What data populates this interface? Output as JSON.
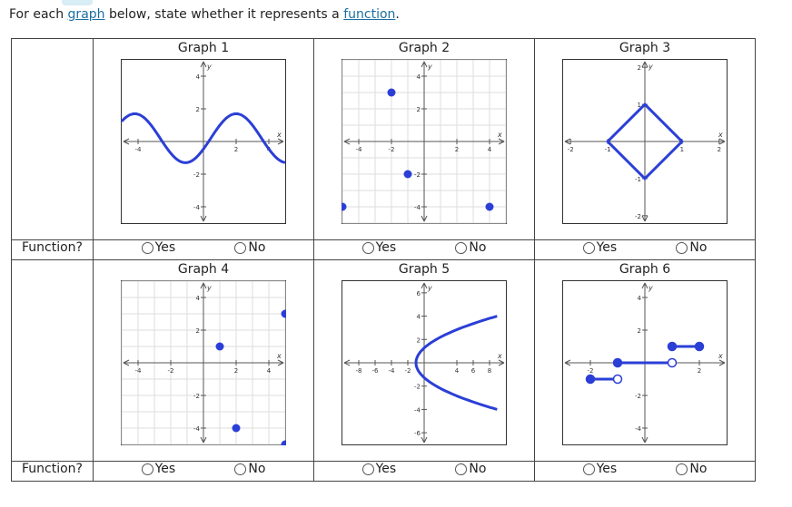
{
  "prompt": {
    "before": "For each ",
    "link1": "graph",
    "middle": " below, state whether it represents a ",
    "link2": "function",
    "after": "."
  },
  "question_label": "Function?",
  "yes_label": "Yes",
  "no_label": "No",
  "graphs": [
    {
      "title": "Graph 1"
    },
    {
      "title": "Graph 2"
    },
    {
      "title": "Graph 3"
    },
    {
      "title": "Graph 4"
    },
    {
      "title": "Graph 5"
    },
    {
      "title": "Graph 6"
    }
  ],
  "axis": {
    "x_label": "x",
    "y_label": "y"
  },
  "chart_data": [
    {
      "type": "line",
      "title": "Graph 1",
      "xlim": [
        -5,
        5
      ],
      "ylim": [
        -5,
        5
      ],
      "xticks": [
        "-4",
        "2",
        "4"
      ],
      "yticks": [
        "4",
        "2",
        "-2",
        "-4"
      ],
      "description": "sine-like wave",
      "grid": false
    },
    {
      "type": "scatter",
      "title": "Graph 2",
      "xlim": [
        -5,
        5
      ],
      "ylim": [
        -5,
        5
      ],
      "xticks": [
        "-4",
        "-2",
        "2",
        "4"
      ],
      "yticks": [
        "4",
        "2",
        "-2",
        "-4"
      ],
      "points": [
        [
          -2,
          3
        ],
        [
          -5,
          -4
        ],
        [
          -1,
          -2
        ],
        [
          4,
          -4
        ]
      ],
      "grid": true
    },
    {
      "type": "line",
      "title": "Graph 3",
      "xlim": [
        -2.2,
        2.2
      ],
      "ylim": [
        -2.2,
        2.2
      ],
      "xticks": [
        "-2",
        "-1",
        "1",
        "2"
      ],
      "yticks": [
        "2",
        "1",
        "-1",
        "-2"
      ],
      "vertices": [
        [
          0,
          1
        ],
        [
          1,
          0
        ],
        [
          0,
          -1
        ],
        [
          -1,
          0
        ]
      ],
      "grid": false
    },
    {
      "type": "scatter",
      "title": "Graph 4",
      "xlim": [
        -5,
        5
      ],
      "ylim": [
        -5,
        5
      ],
      "xticks": [
        "-4",
        "-2",
        "2",
        "4"
      ],
      "yticks": [
        "4",
        "2",
        "-2",
        "-4"
      ],
      "points": [
        [
          5,
          3
        ],
        [
          1,
          1
        ],
        [
          2,
          -4
        ],
        [
          5,
          -5
        ]
      ],
      "grid": true
    },
    {
      "type": "line",
      "title": "Graph 5",
      "xlim": [
        -10,
        10
      ],
      "ylim": [
        -7,
        7
      ],
      "xticks": [
        "-8",
        "-6",
        "-4",
        "-2",
        "4",
        "6",
        "8"
      ],
      "yticks": [
        "6",
        "4",
        "2",
        "-2",
        "-4",
        "-6"
      ],
      "description": "sideways parabola opening right, vertex near (-1,0)",
      "grid": false
    },
    {
      "type": "line",
      "title": "Graph 6",
      "xlim": [
        -3,
        3
      ],
      "ylim": [
        -5,
        5
      ],
      "xticks": [
        "-2",
        "2"
      ],
      "yticks": [
        "4",
        "2",
        "-2",
        "-4"
      ],
      "segments": [
        {
          "from": [
            -2,
            -1
          ],
          "to": [
            -1,
            -1
          ],
          "start": "closed",
          "end": "open"
        },
        {
          "from": [
            -1,
            0
          ],
          "to": [
            1,
            0
          ],
          "start": "closed",
          "end": "open"
        },
        {
          "from": [
            1,
            1
          ],
          "to": [
            2,
            1
          ],
          "start": "closed",
          "end": "closed"
        }
      ],
      "grid": false
    }
  ]
}
